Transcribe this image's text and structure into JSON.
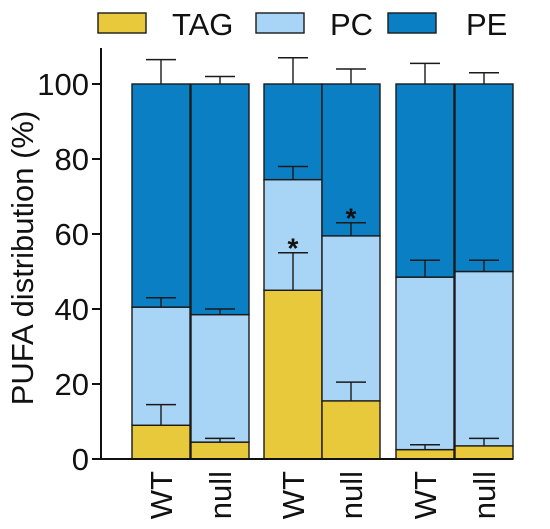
{
  "chart_data": {
    "type": "bar",
    "stacked": true,
    "ylabel": "PUFA distribution (%)",
    "xlabel": "",
    "ylim": [
      0,
      108
    ],
    "yticks": [
      0,
      20,
      40,
      60,
      80,
      100
    ],
    "grid": false,
    "legend_position": "top",
    "categories": [
      "WT",
      "null",
      "WT",
      "null",
      "WT",
      "null"
    ],
    "groups": [
      [
        0,
        1
      ],
      [
        2,
        3
      ],
      [
        4,
        5
      ]
    ],
    "series": [
      {
        "name": "TAG",
        "color": "#e8c93c",
        "values": [
          9,
          4.5,
          45,
          15.5,
          2.5,
          3.5
        ],
        "error_top": [
          14.5,
          5.5,
          55,
          20.5,
          3.8,
          5.5
        ]
      },
      {
        "name": "PC",
        "color": "#a8d4f5",
        "values": [
          31.5,
          34,
          29.5,
          44,
          46,
          46.5
        ],
        "error_top": [
          43,
          40,
          78,
          63,
          53,
          53
        ]
      },
      {
        "name": "PE",
        "color": "#0a7fc4",
        "values": [
          59.5,
          61.5,
          25.5,
          40.5,
          51.5,
          50
        ],
        "error_top": [
          106.5,
          102,
          107,
          104,
          105.5,
          103
        ]
      }
    ],
    "annotations": [
      {
        "text": "*",
        "bar": 2,
        "y": 57
      },
      {
        "text": "*",
        "bar": 3,
        "y": 65
      }
    ]
  }
}
